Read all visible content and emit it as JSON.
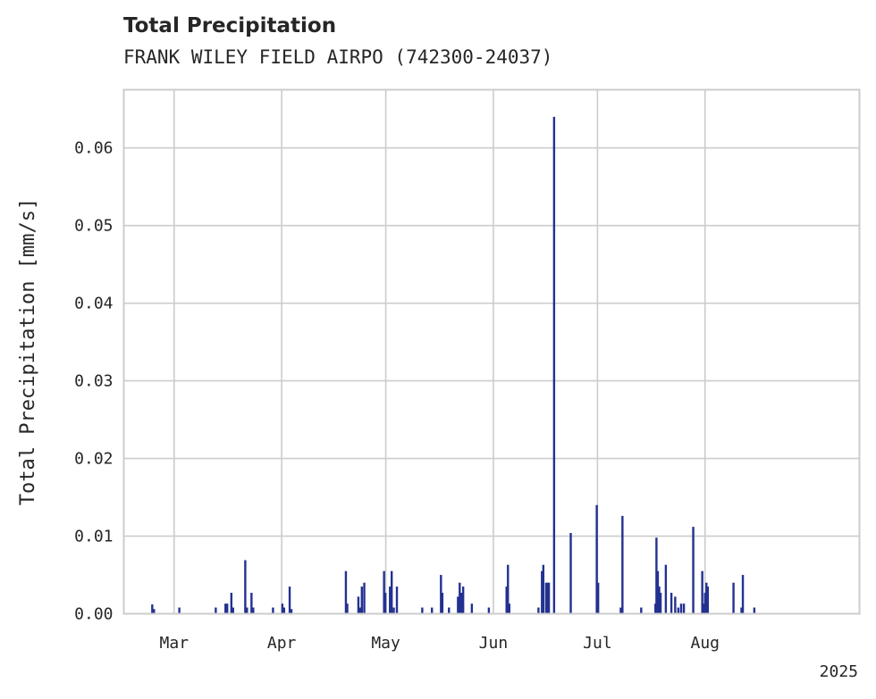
{
  "chart_data": {
    "type": "bar",
    "title": "Total Precipitation",
    "subtitle": "FRANK WILEY FIELD AIRPO (742300-24037)",
    "xlabel": "",
    "ylabel": "Total Precipitation [mm/s]",
    "ylim": [
      0,
      0.0675
    ],
    "yticks": [
      0.0,
      0.01,
      0.02,
      0.03,
      0.04,
      0.05,
      0.06
    ],
    "ytick_labels": [
      "0.00",
      "0.01",
      "0.02",
      "0.03",
      "0.04",
      "0.05",
      "0.06"
    ],
    "xlim_day": [
      -8.5,
      203.5
    ],
    "xticks": [
      {
        "day": 6,
        "label": "Mar"
      },
      {
        "day": 37,
        "label": "Apr"
      },
      {
        "day": 67,
        "label": "May"
      },
      {
        "day": 98,
        "label": "Jun"
      },
      {
        "day": 128,
        "label": "Jul"
      },
      {
        "day": 159,
        "label": "Aug"
      }
    ],
    "x_offset_label": "2025",
    "x_start_date": "2025-02-23",
    "x_day_unit": "days since 2025-02-23",
    "grid": true,
    "series": [
      {
        "name": "Total Precipitation",
        "color": "#233190",
        "points": [
          {
            "day": -0.3,
            "value": 0.0012
          },
          {
            "day": 0.2,
            "value": 0.0006
          },
          {
            "day": 7.5,
            "value": 0.0008
          },
          {
            "day": 18.0,
            "value": 0.0008
          },
          {
            "day": 20.8,
            "value": 0.0013
          },
          {
            "day": 21.3,
            "value": 0.0013
          },
          {
            "day": 22.5,
            "value": 0.0027
          },
          {
            "day": 23.0,
            "value": 0.0008
          },
          {
            "day": 26.5,
            "value": 0.0069
          },
          {
            "day": 27.0,
            "value": 0.0008
          },
          {
            "day": 28.3,
            "value": 0.0027
          },
          {
            "day": 28.8,
            "value": 0.0008
          },
          {
            "day": 34.5,
            "value": 0.0008
          },
          {
            "day": 37.2,
            "value": 0.0013
          },
          {
            "day": 37.7,
            "value": 0.0008
          },
          {
            "day": 39.3,
            "value": 0.0035
          },
          {
            "day": 39.8,
            "value": 0.0006
          },
          {
            "day": 55.5,
            "value": 0.0055
          },
          {
            "day": 55.9,
            "value": 0.0013
          },
          {
            "day": 59.1,
            "value": 0.0022
          },
          {
            "day": 59.6,
            "value": 0.0008
          },
          {
            "day": 60.1,
            "value": 0.0035
          },
          {
            "day": 60.8,
            "value": 0.004
          },
          {
            "day": 66.5,
            "value": 0.0055
          },
          {
            "day": 66.9,
            "value": 0.0027
          },
          {
            "day": 68.2,
            "value": 0.0035
          },
          {
            "day": 68.7,
            "value": 0.0055
          },
          {
            "day": 69.3,
            "value": 0.0008
          },
          {
            "day": 70.2,
            "value": 0.0035
          },
          {
            "day": 77.5,
            "value": 0.0008
          },
          {
            "day": 80.3,
            "value": 0.0008
          },
          {
            "day": 82.9,
            "value": 0.005
          },
          {
            "day": 83.3,
            "value": 0.0027
          },
          {
            "day": 85.2,
            "value": 0.0008
          },
          {
            "day": 87.8,
            "value": 0.0022
          },
          {
            "day": 88.3,
            "value": 0.004
          },
          {
            "day": 88.8,
            "value": 0.0027
          },
          {
            "day": 89.3,
            "value": 0.0035
          },
          {
            "day": 91.8,
            "value": 0.0013
          },
          {
            "day": 96.7,
            "value": 0.0008
          },
          {
            "day": 101.8,
            "value": 0.0035
          },
          {
            "day": 102.2,
            "value": 0.0063
          },
          {
            "day": 102.6,
            "value": 0.0013
          },
          {
            "day": 111.0,
            "value": 0.0008
          },
          {
            "day": 112.0,
            "value": 0.0055
          },
          {
            "day": 112.4,
            "value": 0.0063
          },
          {
            "day": 113.2,
            "value": 0.004
          },
          {
            "day": 113.6,
            "value": 0.004
          },
          {
            "day": 114.0,
            "value": 0.004
          },
          {
            "day": 115.5,
            "value": 0.064
          },
          {
            "day": 120.3,
            "value": 0.0104
          },
          {
            "day": 127.8,
            "value": 0.014
          },
          {
            "day": 128.2,
            "value": 0.004
          },
          {
            "day": 134.7,
            "value": 0.0008
          },
          {
            "day": 135.2,
            "value": 0.0126
          },
          {
            "day": 140.6,
            "value": 0.0008
          },
          {
            "day": 144.7,
            "value": 0.0013
          },
          {
            "day": 145.0,
            "value": 0.0098
          },
          {
            "day": 145.4,
            "value": 0.0055
          },
          {
            "day": 145.8,
            "value": 0.0035
          },
          {
            "day": 146.2,
            "value": 0.0027
          },
          {
            "day": 147.7,
            "value": 0.0063
          },
          {
            "day": 149.3,
            "value": 0.0027
          },
          {
            "day": 150.4,
            "value": 0.0022
          },
          {
            "day": 151.3,
            "value": 0.0008
          },
          {
            "day": 152.1,
            "value": 0.0013
          },
          {
            "day": 152.9,
            "value": 0.0013
          },
          {
            "day": 155.6,
            "value": 0.0112
          },
          {
            "day": 158.2,
            "value": 0.0055
          },
          {
            "day": 158.6,
            "value": 0.0013
          },
          {
            "day": 159.0,
            "value": 0.0027
          },
          {
            "day": 159.4,
            "value": 0.004
          },
          {
            "day": 159.8,
            "value": 0.0035
          },
          {
            "day": 167.2,
            "value": 0.004
          },
          {
            "day": 169.5,
            "value": 0.0008
          },
          {
            "day": 169.9,
            "value": 0.005
          },
          {
            "day": 173.2,
            "value": 0.0008
          }
        ]
      }
    ]
  }
}
